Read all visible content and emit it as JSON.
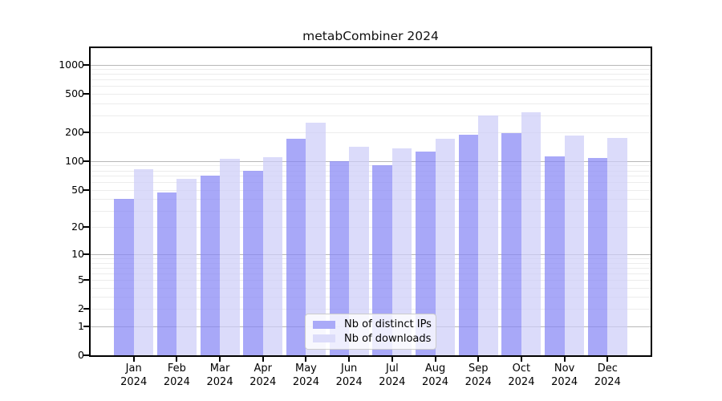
{
  "chart_data": {
    "type": "bar",
    "title": "metabCombiner 2024",
    "categories": [
      "Jan 2024",
      "Feb 2024",
      "Mar 2024",
      "Apr 2024",
      "May 2024",
      "Jun 2024",
      "Jul 2024",
      "Aug 2024",
      "Sep 2024",
      "Oct 2024",
      "Nov 2024",
      "Dec 2024"
    ],
    "series": [
      {
        "name": "Nb of distinct IPs",
        "values": [
          40,
          47,
          70,
          79,
          170,
          100,
          90,
          125,
          188,
          197,
          112,
          107
        ]
      },
      {
        "name": "Nb of downloads",
        "values": [
          82,
          65,
          105,
          110,
          250,
          142,
          136,
          170,
          298,
          322,
          186,
          175
        ]
      }
    ],
    "xlabel": "",
    "ylabel": "",
    "y_axis": {
      "scale": "log10(value+1)",
      "ticks": [
        0,
        1,
        2,
        5,
        10,
        20,
        50,
        100,
        200,
        500,
        1000
      ],
      "max": 1485,
      "major_gridlines": [
        1,
        10,
        100,
        1000
      ]
    },
    "grid": "horizontal major+minor",
    "legend_position": "lower center"
  },
  "colors": {
    "bar_distinct_ips_fill": "rgba(134,134,245,0.72)",
    "bar_downloads_fill": "rgba(205,205,248,0.72)",
    "legend_swatch_distinct_ips": "#aaaaf8",
    "legend_swatch_downloads": "#dcdcfa",
    "grid_major": "#b8b8b8",
    "grid_minor": "#ececec",
    "axis_spine": "#000000",
    "text": "#000000",
    "legend_border": "#cccccc",
    "legend_background": "rgba(255,255,255,0.8)"
  }
}
